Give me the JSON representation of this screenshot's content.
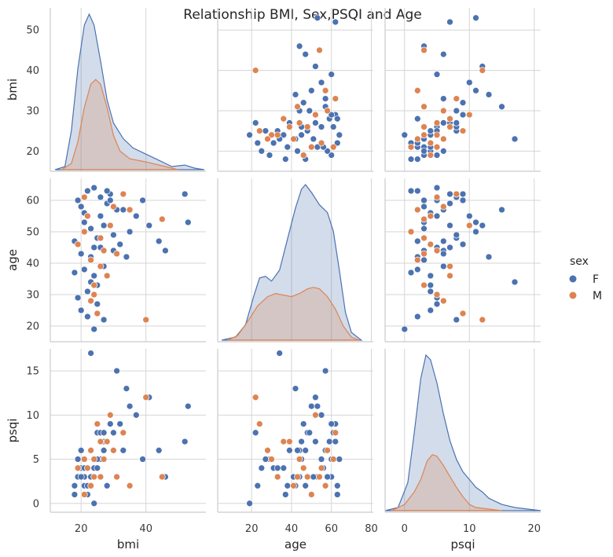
{
  "chart_data": {
    "type": "pairplot",
    "title": "Relationship BMI, Sex,PSQI and Age",
    "variables": [
      "bmi",
      "age",
      "psqi"
    ],
    "axis_labels": {
      "bmi": "bmi",
      "age": "age",
      "psqi": "psqi"
    },
    "ticks": {
      "bmi": [
        20,
        40
      ],
      "age": [
        20,
        40,
        60,
        80
      ],
      "psqi": [
        0,
        10,
        20
      ]
    },
    "ranges": {
      "bmi": [
        10.5,
        58.5
      ],
      "age": [
        3,
        81
      ],
      "psqi": [
        -3,
        21
      ]
    },
    "y_ticks": {
      "bmi": [
        20,
        30,
        40,
        50
      ],
      "age": [
        20,
        30,
        40,
        50,
        60
      ],
      "psqi": [
        0,
        5,
        10,
        15
      ]
    },
    "y_ranges": {
      "bmi": [
        15,
        55.5
      ],
      "age": [
        15,
        67
      ],
      "psqi": [
        -1,
        17.5
      ]
    },
    "grid": true,
    "legend": {
      "title": "sex",
      "placement": "right",
      "entries": [
        {
          "name": "F",
          "color": "#4c72b0"
        },
        {
          "name": "M",
          "color": "#dd8452"
        }
      ]
    },
    "kde": {
      "bmi": {
        "F": [
          [
            12,
            0
          ],
          [
            15,
            0.02
          ],
          [
            17,
            0.25
          ],
          [
            19,
            0.65
          ],
          [
            21,
            0.93
          ],
          [
            22.5,
            1.0
          ],
          [
            24,
            0.93
          ],
          [
            26,
            0.7
          ],
          [
            28,
            0.45
          ],
          [
            30,
            0.3
          ],
          [
            33,
            0.2
          ],
          [
            36,
            0.14
          ],
          [
            40,
            0.1
          ],
          [
            44,
            0.06
          ],
          [
            48,
            0.02
          ],
          [
            52,
            0.03
          ],
          [
            55,
            0.01
          ],
          [
            58,
            0
          ]
        ],
        "M": [
          [
            14,
            0
          ],
          [
            17,
            0.04
          ],
          [
            19,
            0.18
          ],
          [
            21,
            0.4
          ],
          [
            23,
            0.55
          ],
          [
            24.5,
            0.58
          ],
          [
            26,
            0.55
          ],
          [
            28,
            0.4
          ],
          [
            30,
            0.22
          ],
          [
            32,
            0.12
          ],
          [
            35,
            0.07
          ],
          [
            40,
            0.05
          ],
          [
            46,
            0.02
          ],
          [
            50,
            0
          ]
        ]
      },
      "age": {
        "F": [
          [
            5,
            0
          ],
          [
            12,
            0.02
          ],
          [
            17,
            0.1
          ],
          [
            21,
            0.28
          ],
          [
            24,
            0.4
          ],
          [
            27,
            0.41
          ],
          [
            30,
            0.38
          ],
          [
            34,
            0.45
          ],
          [
            38,
            0.65
          ],
          [
            42,
            0.85
          ],
          [
            45,
            0.97
          ],
          [
            47,
            1.0
          ],
          [
            50,
            0.95
          ],
          [
            54,
            0.87
          ],
          [
            58,
            0.82
          ],
          [
            61,
            0.7
          ],
          [
            64,
            0.45
          ],
          [
            67,
            0.18
          ],
          [
            70,
            0.05
          ],
          [
            75,
            0
          ]
        ],
        "M": [
          [
            8,
            0
          ],
          [
            13,
            0.03
          ],
          [
            18,
            0.12
          ],
          [
            23,
            0.22
          ],
          [
            28,
            0.28
          ],
          [
            32,
            0.3
          ],
          [
            36,
            0.29
          ],
          [
            40,
            0.28
          ],
          [
            44,
            0.3
          ],
          [
            48,
            0.33
          ],
          [
            51,
            0.34
          ],
          [
            54,
            0.33
          ],
          [
            58,
            0.28
          ],
          [
            62,
            0.2
          ],
          [
            66,
            0.09
          ],
          [
            70,
            0.02
          ],
          [
            74,
            0
          ]
        ]
      },
      "psqi": {
        "F": [
          [
            -3,
            0
          ],
          [
            -1,
            0.02
          ],
          [
            0.5,
            0.18
          ],
          [
            1.5,
            0.5
          ],
          [
            2.5,
            0.85
          ],
          [
            3.3,
            1.0
          ],
          [
            4,
            0.97
          ],
          [
            5,
            0.82
          ],
          [
            6,
            0.62
          ],
          [
            7,
            0.45
          ],
          [
            8,
            0.33
          ],
          [
            9,
            0.25
          ],
          [
            10,
            0.2
          ],
          [
            11,
            0.15
          ],
          [
            12,
            0.12
          ],
          [
            13,
            0.08
          ],
          [
            15,
            0.04
          ],
          [
            17,
            0.02
          ],
          [
            19,
            0.01
          ],
          [
            21,
            0
          ]
        ],
        "M": [
          [
            -2,
            0
          ],
          [
            0,
            0.04
          ],
          [
            1.5,
            0.12
          ],
          [
            2.5,
            0.2
          ],
          [
            3.5,
            0.32
          ],
          [
            4.3,
            0.36
          ],
          [
            5,
            0.35
          ],
          [
            6,
            0.29
          ],
          [
            7,
            0.22
          ],
          [
            8,
            0.15
          ],
          [
            9,
            0.09
          ],
          [
            10,
            0.04
          ],
          [
            11,
            0.02
          ],
          [
            13,
            0.01
          ],
          [
            15,
            0
          ]
        ]
      }
    },
    "scatter": {
      "generated_from_summary": true,
      "F": [
        {
          "bmi": 22,
          "age": 31,
          "psqi": 4
        },
        {
          "bmi": 24,
          "age": 45,
          "psqi": 5
        },
        {
          "bmi": 19,
          "age": 60,
          "psqi": 3
        },
        {
          "bmi": 27,
          "age": 52,
          "psqi": 7
        },
        {
          "bmi": 21,
          "age": 38,
          "psqi": 2
        },
        {
          "bmi": 33,
          "age": 57,
          "psqi": 6
        },
        {
          "bmi": 25,
          "age": 48,
          "psqi": 8
        },
        {
          "bmi": 20,
          "age": 25,
          "psqi": 4
        },
        {
          "bmi": 29,
          "age": 62,
          "psqi": 9
        },
        {
          "bmi": 23,
          "age": 41,
          "psqi": 3
        },
        {
          "bmi": 26,
          "age": 55,
          "psqi": 5
        },
        {
          "bmi": 18,
          "age": 47,
          "psqi": 2
        },
        {
          "bmi": 35,
          "age": 50,
          "psqi": 11
        },
        {
          "bmi": 30,
          "age": 44,
          "psqi": 6
        },
        {
          "bmi": 22,
          "age": 63,
          "psqi": 1
        },
        {
          "bmi": 24,
          "age": 36,
          "psqi": 4
        },
        {
          "bmi": 28,
          "age": 59,
          "psqi": 7
        },
        {
          "bmi": 21,
          "age": 53,
          "psqi": 3
        },
        {
          "bmi": 32,
          "age": 46,
          "psqi": 9
        },
        {
          "bmi": 19,
          "age": 29,
          "psqi": 5
        },
        {
          "bmi": 26,
          "age": 61,
          "psqi": 8
        },
        {
          "bmi": 23,
          "age": 42,
          "psqi": 2
        },
        {
          "bmi": 37,
          "age": 55,
          "psqi": 10
        },
        {
          "bmi": 25,
          "age": 33,
          "psqi": 4
        },
        {
          "bmi": 20,
          "age": 58,
          "psqi": 3
        },
        {
          "bmi": 27,
          "age": 39,
          "psqi": 6
        },
        {
          "bmi": 24,
          "age": 64,
          "psqi": 5
        },
        {
          "bmi": 30,
          "age": 49,
          "psqi": 8
        },
        {
          "bmi": 22,
          "age": 23,
          "psqi": 2
        },
        {
          "bmi": 41,
          "age": 52,
          "psqi": 12
        },
        {
          "bmi": 26,
          "age": 45,
          "psqi": 7
        },
        {
          "bmi": 18,
          "age": 37,
          "psqi": 1
        },
        {
          "bmi": 29,
          "age": 60,
          "psqi": 9
        },
        {
          "bmi": 23,
          "age": 51,
          "psqi": 3
        },
        {
          "bmi": 44,
          "age": 47,
          "psqi": 6
        },
        {
          "bmi": 21,
          "age": 56,
          "psqi": 4
        },
        {
          "bmi": 34,
          "age": 42,
          "psqi": 13
        },
        {
          "bmi": 25,
          "age": 27,
          "psqi": 5
        },
        {
          "bmi": 28,
          "age": 63,
          "psqi": 2
        },
        {
          "bmi": 52,
          "age": 62,
          "psqi": 7
        },
        {
          "bmi": 53,
          "age": 53,
          "psqi": 11
        },
        {
          "bmi": 24,
          "age": 19,
          "psqi": 0
        },
        {
          "bmi": 46,
          "age": 44,
          "psqi": 3
        },
        {
          "bmi": 31,
          "age": 57,
          "psqi": 15
        },
        {
          "bmi": 23,
          "age": 34,
          "psqi": 17
        },
        {
          "bmi": 27,
          "age": 22,
          "psqi": 8
        },
        {
          "bmi": 39,
          "age": 60,
          "psqi": 5
        },
        {
          "bmi": 20,
          "age": 43,
          "psqi": 6
        }
      ],
      "M": [
        {
          "bmi": 24,
          "age": 30,
          "psqi": 5
        },
        {
          "bmi": 26,
          "age": 48,
          "psqi": 3
        },
        {
          "bmi": 22,
          "age": 55,
          "psqi": 4
        },
        {
          "bmi": 28,
          "age": 36,
          "psqi": 7
        },
        {
          "bmi": 23,
          "age": 41,
          "psqi": 2
        },
        {
          "bmi": 30,
          "age": 58,
          "psqi": 6
        },
        {
          "bmi": 25,
          "age": 24,
          "psqi": 9
        },
        {
          "bmi": 21,
          "age": 50,
          "psqi": 1
        },
        {
          "bmi": 27,
          "age": 44,
          "psqi": 5
        },
        {
          "bmi": 33,
          "age": 62,
          "psqi": 8
        },
        {
          "bmi": 24,
          "age": 33,
          "psqi": 3
        },
        {
          "bmi": 19,
          "age": 46,
          "psqi": 4
        },
        {
          "bmi": 29,
          "age": 52,
          "psqi": 10
        },
        {
          "bmi": 23,
          "age": 28,
          "psqi": 6
        },
        {
          "bmi": 35,
          "age": 57,
          "psqi": 2
        },
        {
          "bmi": 26,
          "age": 39,
          "psqi": 7
        },
        {
          "bmi": 40,
          "age": 22,
          "psqi": 12
        },
        {
          "bmi": 21,
          "age": 61,
          "psqi": 5
        },
        {
          "bmi": 31,
          "age": 43,
          "psqi": 3
        },
        {
          "bmi": 45,
          "age": 54,
          "psqi": 3
        }
      ]
    }
  }
}
